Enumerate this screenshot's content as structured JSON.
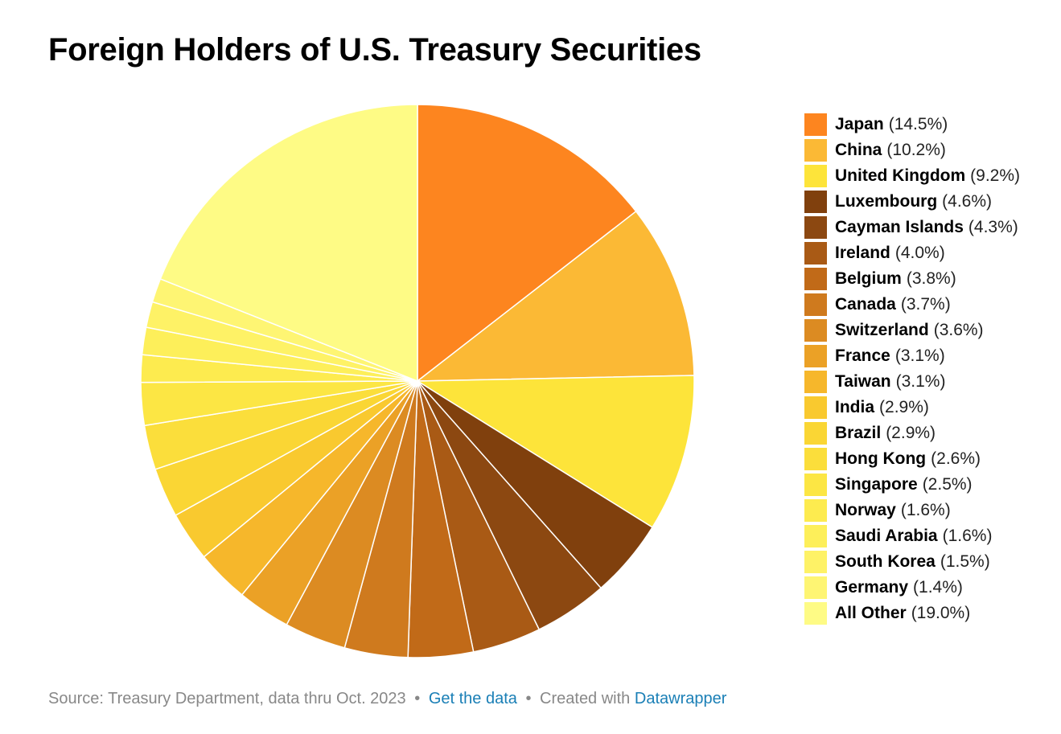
{
  "title": "Foreign Holders of U.S. Treasury Securities",
  "footer": {
    "source": "Source: Treasury Department, data thru Oct. 2023",
    "separator": "•",
    "get_data": "Get the data",
    "created_with": "Created with",
    "datawrapper": "Datawrapper"
  },
  "chart_data": {
    "type": "pie",
    "title": "Foreign Holders of U.S. Treasury Securities",
    "legend_position": "right",
    "slices": [
      {
        "name": "Japan",
        "value": 14.5,
        "label": "(14.5%)",
        "color": "#fd851f"
      },
      {
        "name": "China",
        "value": 10.2,
        "label": "(10.2%)",
        "color": "#fbb935"
      },
      {
        "name": "United Kingdom",
        "value": 9.2,
        "label": "(9.2%)",
        "color": "#fde43a"
      },
      {
        "name": "Luxembourg",
        "value": 4.6,
        "label": "(4.6%)",
        "color": "#80400d"
      },
      {
        "name": "Cayman Islands",
        "value": 4.3,
        "label": "(4.3%)",
        "color": "#8c4811"
      },
      {
        "name": "Ireland",
        "value": 4.0,
        "label": "(4.0%)",
        "color": "#a95a15"
      },
      {
        "name": "Belgium",
        "value": 3.8,
        "label": "(3.8%)",
        "color": "#c16a18"
      },
      {
        "name": "Canada",
        "value": 3.7,
        "label": "(3.7%)",
        "color": "#cf7a1e"
      },
      {
        "name": "Switzerland",
        "value": 3.6,
        "label": "(3.6%)",
        "color": "#dc8b22"
      },
      {
        "name": "France",
        "value": 3.1,
        "label": "(3.1%)",
        "color": "#eba126"
      },
      {
        "name": "Taiwan",
        "value": 3.1,
        "label": "(3.1%)",
        "color": "#f6b72b"
      },
      {
        "name": "India",
        "value": 2.9,
        "label": "(2.9%)",
        "color": "#f9c92f"
      },
      {
        "name": "Brazil",
        "value": 2.9,
        "label": "(2.9%)",
        "color": "#fad634"
      },
      {
        "name": "Hong Kong",
        "value": 2.6,
        "label": "(2.6%)",
        "color": "#fbde3b"
      },
      {
        "name": "Singapore",
        "value": 2.5,
        "label": "(2.5%)",
        "color": "#fce644"
      },
      {
        "name": "Norway",
        "value": 1.6,
        "label": "(1.6%)",
        "color": "#fdeb4f"
      },
      {
        "name": "Saudi Arabia",
        "value": 1.6,
        "label": "(1.6%)",
        "color": "#fdef5a"
      },
      {
        "name": "South Korea",
        "value": 1.5,
        "label": "(1.5%)",
        "color": "#fef266"
      },
      {
        "name": "Germany",
        "value": 1.4,
        "label": "(1.4%)",
        "color": "#fef573"
      },
      {
        "name": "All Other",
        "value": 19.0,
        "label": "(19.0%)",
        "color": "#fefb85"
      }
    ]
  }
}
